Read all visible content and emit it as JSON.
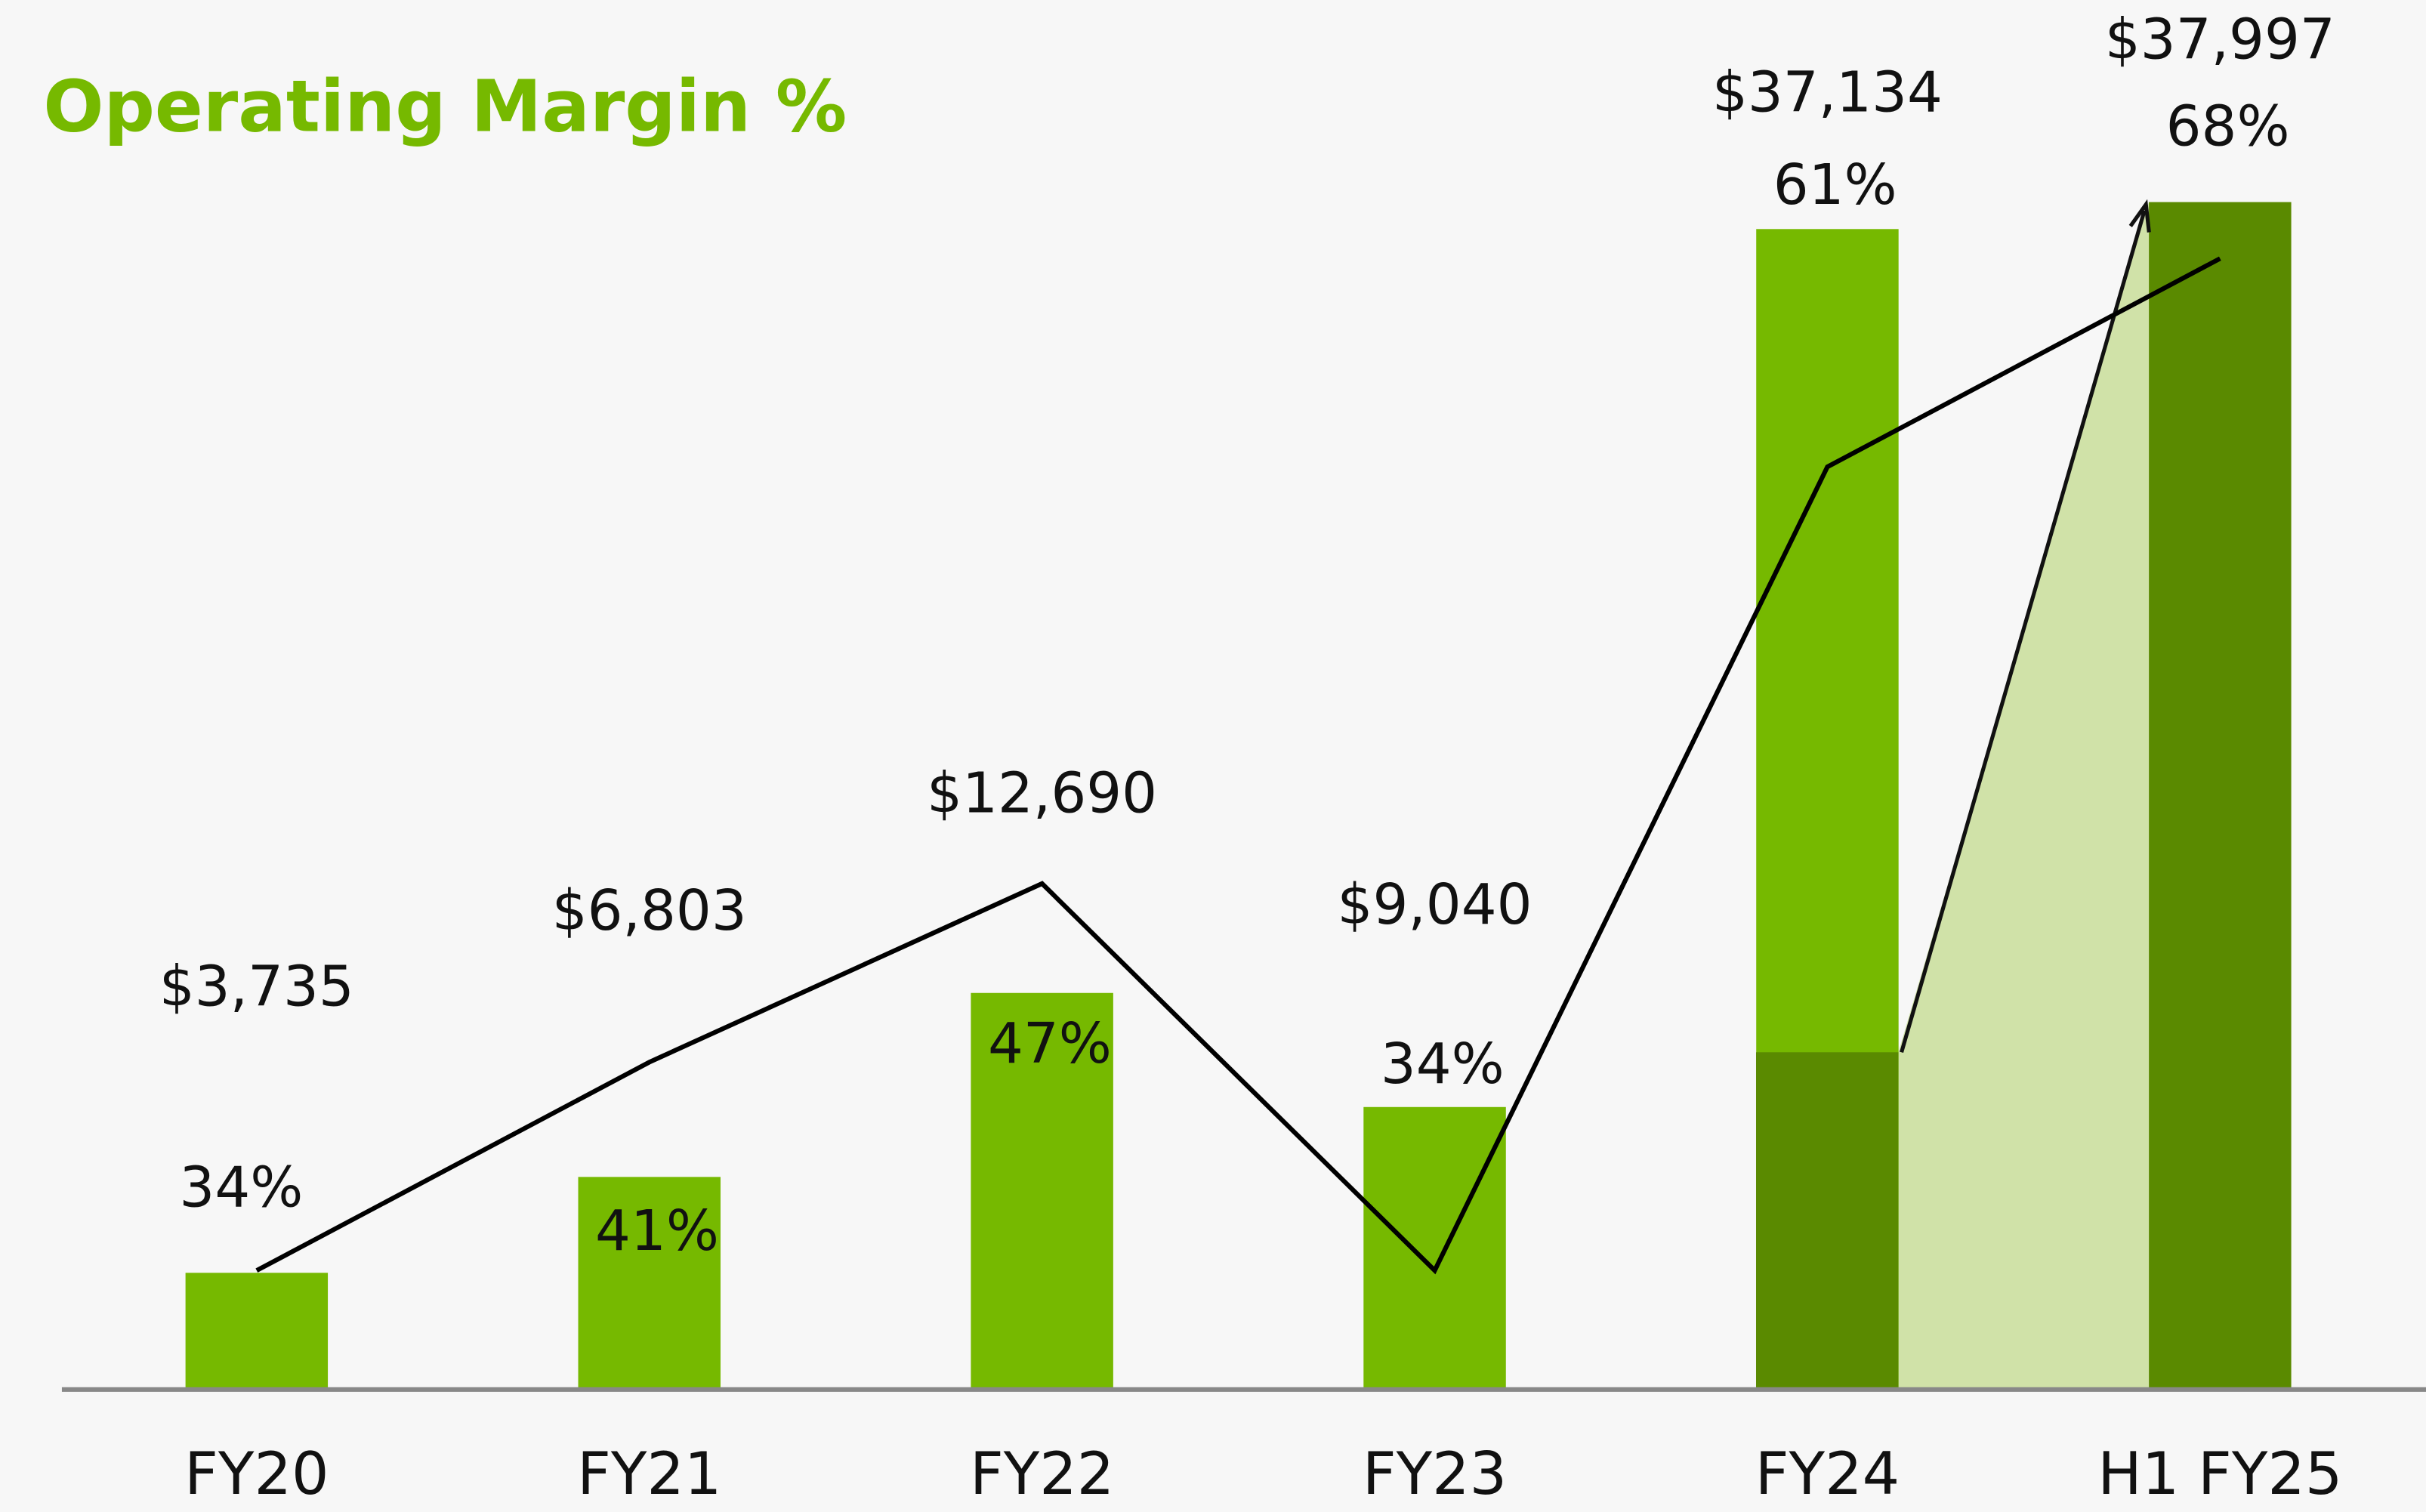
{
  "chart_data": {
    "type": "bar",
    "title": "Operating Margin %",
    "categories": [
      "FY20",
      "FY21",
      "FY22",
      "FY23",
      "FY24",
      "H1 FY25"
    ],
    "ylim": [
      0,
      40000
    ],
    "y2lim": [
      30,
      72
    ],
    "series": [
      {
        "type": "bar",
        "colors": [
          "#76b900",
          "#76b900",
          "#76b900",
          "#76b900",
          "#76b900",
          "#5a8a00"
        ],
        "values": [
          3735,
          6803,
          12690,
          9040,
          37134,
          37997
        ],
        "value_labels": [
          "$3,735",
          "$6,803",
          "$12,690",
          "$9,040",
          "$37,134",
          "$37,997"
        ]
      },
      {
        "type": "line",
        "axis": "y2",
        "color": "#000000",
        "values": [
          34,
          41,
          47,
          34,
          61,
          68
        ],
        "value_labels": [
          "34%",
          "41%",
          "47%",
          "34%",
          "61%",
          "68%"
        ]
      }
    ]
  }
}
